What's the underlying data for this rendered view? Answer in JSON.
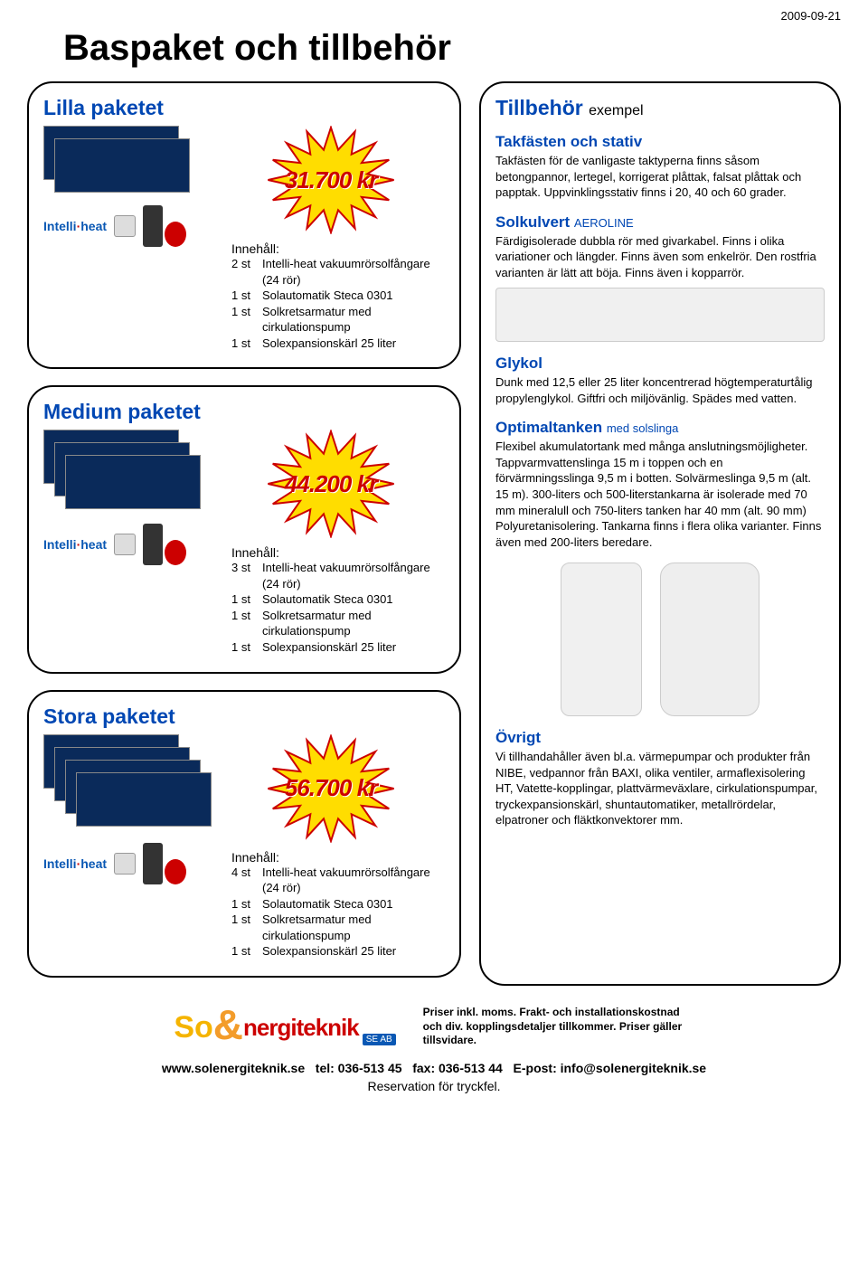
{
  "date": "2009-09-21",
  "main_title": "Baspaket och tillbehör",
  "brand": {
    "part1": "Intelli",
    "dot": "·",
    "part2": "heat"
  },
  "packages": [
    {
      "title": "Lilla paketet",
      "price": "31.700 kr",
      "panel_count": 2,
      "contents_label": "Innehåll:",
      "items": [
        {
          "qty": "2 st",
          "desc": "Intelli-heat vakuumrörsolfångare (24 rör)"
        },
        {
          "qty": "1 st",
          "desc": "Solautomatik Steca 0301"
        },
        {
          "qty": "1 st",
          "desc": "Solkretsarmatur med cirkulationspump"
        },
        {
          "qty": "1 st",
          "desc": "Solexpansionskärl 25 liter"
        }
      ]
    },
    {
      "title": "Medium paketet",
      "price": "44.200 kr",
      "panel_count": 3,
      "contents_label": "Innehåll:",
      "items": [
        {
          "qty": "3 st",
          "desc": "Intelli-heat vakuumrörsolfångare (24 rör)"
        },
        {
          "qty": "1 st",
          "desc": "Solautomatik Steca 0301"
        },
        {
          "qty": "1 st",
          "desc": "Solkretsarmatur med cirkulationspump"
        },
        {
          "qty": "1 st",
          "desc": "Solexpansionskärl 25 liter"
        }
      ]
    },
    {
      "title": "Stora paketet",
      "price": "56.700 kr",
      "panel_count": 4,
      "contents_label": "Innehåll:",
      "items": [
        {
          "qty": "4 st",
          "desc": "Intelli-heat vakuumrörsolfångare (24 rör)"
        },
        {
          "qty": "1 st",
          "desc": "Solautomatik Steca 0301"
        },
        {
          "qty": "1 st",
          "desc": "Solkretsarmatur med cirkulationspump"
        },
        {
          "qty": "1 st",
          "desc": "Solexpansionskärl 25 liter"
        }
      ]
    }
  ],
  "right": {
    "title": "Tillbehör",
    "title_sub": "exempel",
    "sections": [
      {
        "heading": "Takfästen och stativ",
        "sub": "",
        "text": "Takfästen för de vanligaste taktyperna finns såsom betongpannor, lertegel, korrigerat plåttak, falsat plåttak och papptak. Uppvinklingsstativ finns i 20, 40 och 60 grader."
      },
      {
        "heading": "Solkulvert",
        "sub": "AEROLINE",
        "text": "Färdigisolerade dubbla rör med givarkabel. Finns i olika variationer och längder. Finns även som enkelrör. Den rostfria varianten är lätt att böja. Finns även i kopparrör."
      },
      {
        "heading": "Glykol",
        "sub": "",
        "text": "Dunk med 12,5 eller 25 liter koncentrerad högtemperaturtålig propylenglykol. Giftfri och miljövänlig. Spädes med vatten."
      },
      {
        "heading": "Optimaltanken",
        "sub": "med solslinga",
        "text": "Flexibel akumulatortank med många anslutningsmöjligheter. Tappvarmvattenslinga 15 m i toppen och en förvärmningsslinga 9,5 m i botten. Solvärmeslinga 9,5 m (alt. 15 m). 300-liters och 500-literstankarna är isolerade med 70 mm mineralull och 750-liters tanken har 40 mm (alt. 90 mm) Polyuretanisolering. Tankarna finns i flera olika varianter. Finns även med 200-liters beredare."
      },
      {
        "heading": "Övrigt",
        "sub": "",
        "text": "Vi tillhandahåller även bl.a. värmepumpar och produkter från NIBE, vedpannor från BAXI, olika ventiler, armaflexisolering HT, Vatette-kopplingar, plattvärmeväxlare, cirkulationspumpar, tryckexpansionskärl, shuntautomatiker, metallrördelar, elpatroner och fläktkonvektorer mm."
      }
    ]
  },
  "footer": {
    "company_logo": {
      "s": "So",
      "rest": "nergiteknik",
      "tag": "SE AB"
    },
    "note_bold": "Priser inkl. moms. Frakt- och installationskostnad och div. kopplingsdetaljer tillkommer. Priser gäller tillsvidare.",
    "line1_label_www": "www.solenergiteknik.se",
    "line1_tel_label": "tel: 036-513 45",
    "line1_fax_label": "fax: 036-513 44",
    "line1_email_label": "E-post: info@solenergiteknik.se",
    "line2": "Reservation för tryckfel."
  },
  "colors": {
    "title_blue": "#0047b3",
    "price_red": "#cc0000",
    "star_fill": "#ffdd00",
    "star_stroke": "#cc0000"
  }
}
